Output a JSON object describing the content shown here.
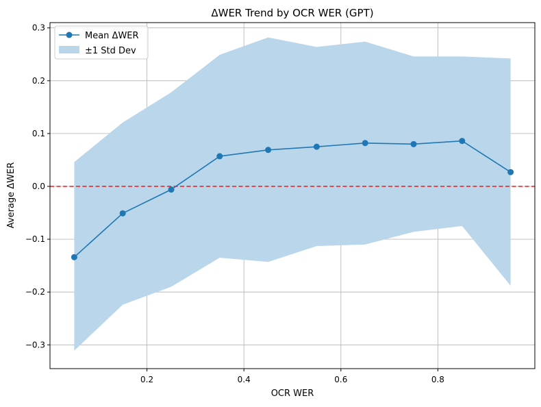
{
  "colors": {
    "series_line": "#1f77b4",
    "band_fill": "#bad6ea",
    "zero_line": "#e81d1d",
    "grid": "#b0b0b0",
    "axes": "#000000"
  },
  "chart_data": {
    "type": "line",
    "title": "ΔWER Trend by OCR WER (GPT)",
    "xlabel": "OCR WER",
    "ylabel": "Average ΔWER",
    "xlim": [
      0.0,
      1.0
    ],
    "ylim": [
      -0.345,
      0.31
    ],
    "x_ticks": [
      0.2,
      0.4,
      0.6,
      0.8
    ],
    "x_tick_labels": [
      "0.2",
      "0.4",
      "0.6",
      "0.8"
    ],
    "y_ticks": [
      -0.3,
      -0.2,
      -0.1,
      0.0,
      0.1,
      0.2,
      0.3
    ],
    "y_tick_labels": [
      "−0.3",
      "−0.2",
      "−0.1",
      "0.0",
      "0.1",
      "0.2",
      "0.3"
    ],
    "grid": true,
    "legend_position": "top-left",
    "x": [
      0.05,
      0.15,
      0.25,
      0.35,
      0.45,
      0.55,
      0.65,
      0.75,
      0.85,
      0.95
    ],
    "series": [
      {
        "name": "Mean ΔWER",
        "values": [
          -0.134,
          -0.051,
          -0.006,
          0.057,
          0.069,
          0.075,
          0.082,
          0.08,
          0.086,
          0.027
        ]
      }
    ],
    "band": {
      "name": "±1 Std Dev",
      "upper": [
        0.046,
        0.121,
        0.178,
        0.249,
        0.282,
        0.264,
        0.274,
        0.246,
        0.246,
        0.242
      ],
      "lower": [
        -0.311,
        -0.224,
        -0.19,
        -0.135,
        -0.143,
        -0.113,
        -0.11,
        -0.086,
        -0.075,
        -0.188
      ]
    },
    "reference_line": {
      "y": 0.0,
      "style": "dashed"
    }
  }
}
